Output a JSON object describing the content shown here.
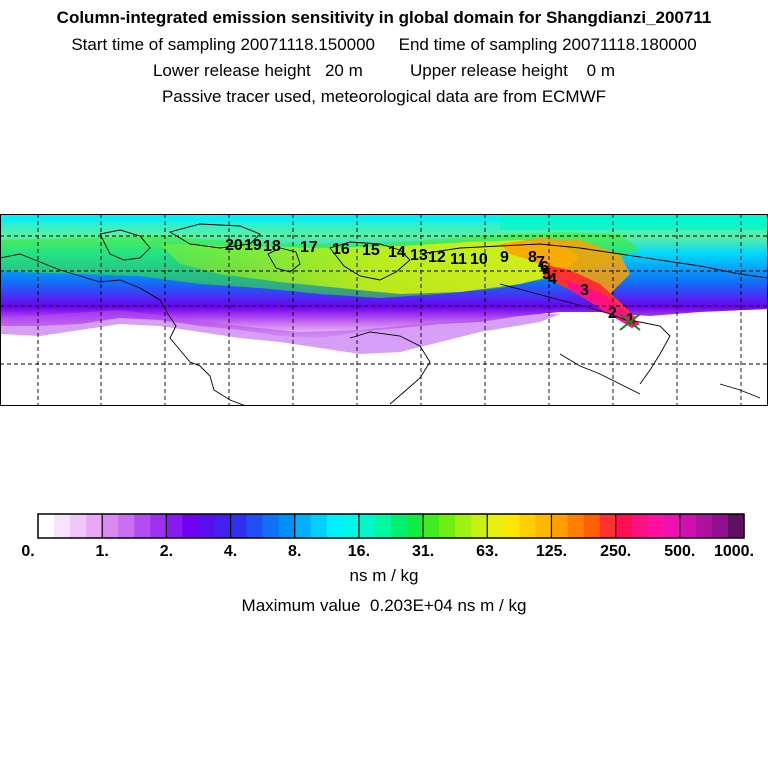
{
  "header": {
    "title": "Column-integrated emission sensitivity in global domain for Shangdianzi_200711",
    "line2": "Start time of sampling 20071118.150000     End time of sampling 20071118.180000",
    "line3": "Lower release height   20 m          Upper release height    0 m",
    "line4": "Passive tracer used, meteorological data are from ECMWF"
  },
  "map": {
    "day_labels": [
      "20",
      "19",
      "18",
      "17",
      "16",
      "15",
      "14",
      "13",
      "12",
      "11",
      "10",
      "9",
      "8",
      "7",
      "6",
      "5",
      "4",
      "3",
      "2",
      "1"
    ]
  },
  "colorbar": {
    "tick_labels": [
      "0.",
      "1.",
      "2.",
      "4.",
      "8.",
      "16.",
      "31.",
      "63.",
      "125.",
      "250.",
      "500.",
      "1000."
    ],
    "colors": [
      "#ffffff",
      "#f7e4fb",
      "#f0c8f7",
      "#e8a8f3",
      "#d98af0",
      "#c96ef0",
      "#b54ef0",
      "#a030f0",
      "#8a18f0",
      "#7000f0",
      "#5a10ee",
      "#4420ee",
      "#3030f0",
      "#2050f5",
      "#1070f8",
      "#0090fa",
      "#00b0fc",
      "#00d0fc",
      "#00f0fc",
      "#00f8e8",
      "#00f8c8",
      "#00f8a0",
      "#00f070",
      "#10ec40",
      "#40ec20",
      "#70ee10",
      "#a0f010",
      "#c8f010",
      "#e8f010",
      "#ffe800",
      "#ffd000",
      "#ffb800",
      "#ffa000",
      "#ff8000",
      "#ff6000",
      "#ff3030",
      "#ff1050",
      "#ff1080",
      "#ff10a0",
      "#f010b0",
      "#d010b0",
      "#b010a0",
      "#901090",
      "#601060"
    ],
    "unit": "ns m / kg",
    "max_text": "Maximum value  0.203E+04 ns m / kg"
  }
}
